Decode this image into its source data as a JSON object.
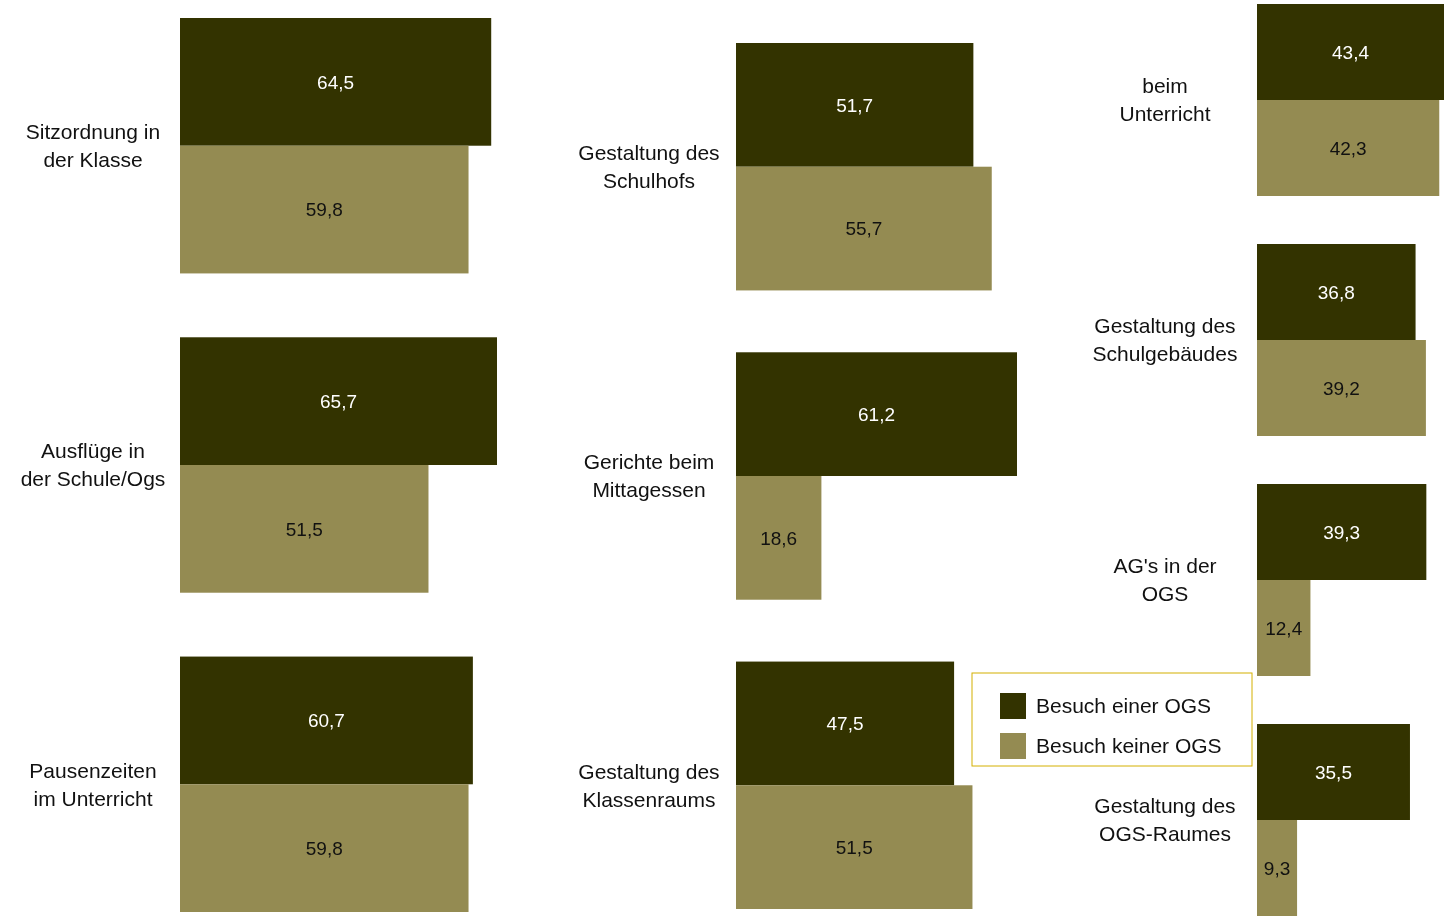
{
  "chart_data": [
    {
      "type": "bar",
      "orientation": "horizontal",
      "categories": [
        "Sitzordnung in der Klasse",
        "Ausflüge in der Schule/Ogs",
        "Pausenzeiten im Unterricht"
      ],
      "tick_labels": "y",
      "series": [
        {
          "color": "#333300",
          "values": [
            64.5,
            65.7,
            60.7
          ],
          "value_labels": [
            "64,5",
            "65,7",
            "60,7"
          ]
        },
        {
          "color": "#948b52",
          "values": [
            59.8,
            51.5,
            59.8
          ],
          "value_labels": [
            "59,8",
            "51,5",
            "59,8"
          ]
        }
      ]
    },
    {
      "type": "bar",
      "orientation": "horizontal",
      "categories": [
        "Gestaltung des Schulhofs",
        "Gerichte beim Mittagessen",
        "Gestaltung des Klassenraums"
      ],
      "tick_labels": "y",
      "series": [
        {
          "color": "#333300",
          "values": [
            51.7,
            61.2,
            47.5
          ],
          "value_labels": [
            "51,7",
            "61,2",
            "47,5"
          ]
        },
        {
          "color": "#948b52",
          "values": [
            55.7,
            18.6,
            51.5
          ],
          "value_labels": [
            "55,7",
            "18,6",
            "51,5"
          ]
        }
      ]
    },
    {
      "type": "bar",
      "orientation": "horizontal",
      "categories": [
        "beim Unterricht",
        "Gestaltung des Schulgebäudes",
        "AG's in der OGS",
        "Gestaltung des OGS-Raumes"
      ],
      "tick_labels": "y",
      "legend": "left",
      "series": [
        {
          "name": "Besuch einer OGS",
          "color": "#333300",
          "values": [
            43.4,
            36.8,
            39.3,
            35.5
          ],
          "value_labels": [
            "43,4",
            "36,8",
            "39,3",
            "35,5"
          ]
        },
        {
          "name": "Besuch keiner OGS",
          "color": "#948b52",
          "values": [
            42.3,
            39.2,
            12.4,
            9.3
          ],
          "value_labels": [
            "42,3",
            "39,2",
            "12,4",
            "9,3"
          ]
        }
      ]
    }
  ]
}
